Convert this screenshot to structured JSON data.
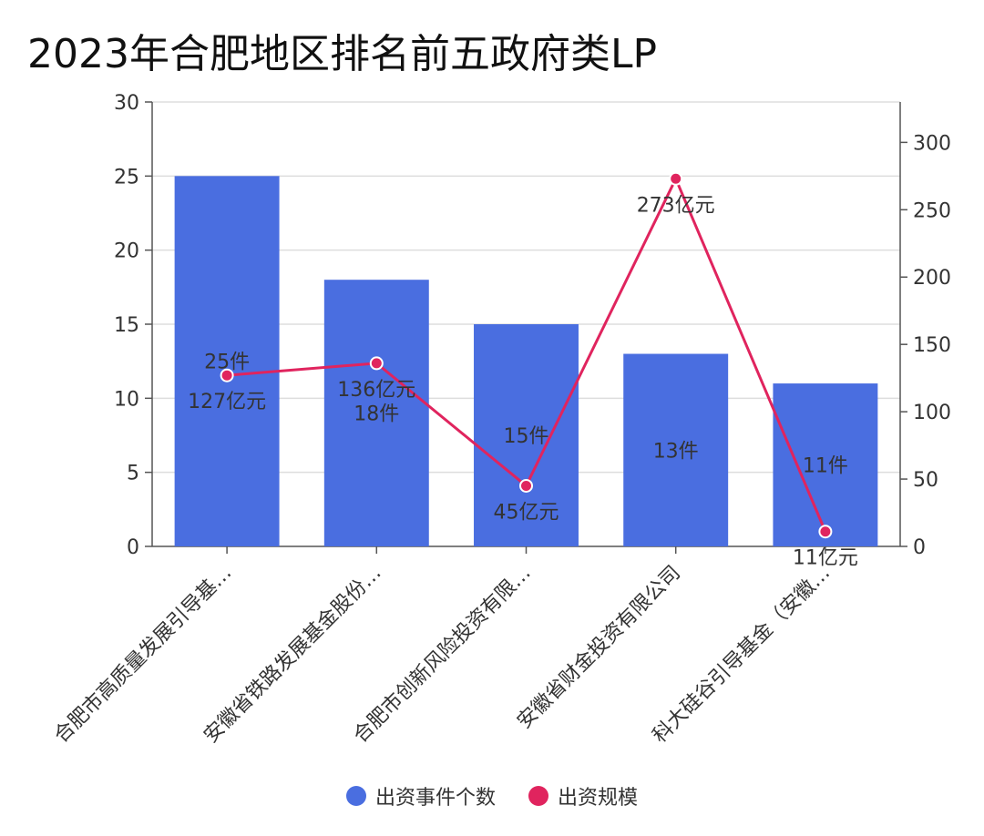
{
  "chart_data": {
    "type": "bar",
    "title": "2023年合肥地区排名前五政府类LP",
    "categories": [
      "合肥市高质量发展引导基…",
      "安徽省铁路发展基金股份…",
      "合肥市创新风险投资有限…",
      "安徽省财金投资有限公司",
      "科大硅谷引导基金（安徽…"
    ],
    "series": [
      {
        "name": "出资事件个数",
        "type": "bar",
        "axis": "left",
        "values": [
          25,
          18,
          15,
          13,
          11
        ],
        "labels": [
          "25件",
          "18件",
          "15件",
          "13件",
          "11件"
        ],
        "color": "#4a6ee0"
      },
      {
        "name": "出资规模",
        "type": "line",
        "axis": "right",
        "values": [
          127,
          136,
          45,
          273,
          11
        ],
        "labels": [
          "127亿元",
          "136亿元",
          "45亿元",
          "273亿元",
          "11亿元"
        ],
        "color": "#e0245e"
      }
    ],
    "left_axis": {
      "ylim": [
        0,
        30
      ],
      "ticks": [
        "0",
        "5",
        "10",
        "15",
        "20",
        "25",
        "30"
      ]
    },
    "right_axis": {
      "ylim": [
        0,
        330
      ],
      "ticks": [
        "0",
        "50",
        "100",
        "150",
        "200",
        "250",
        "300"
      ]
    },
    "grid": true,
    "legend_position": "bottom-center"
  }
}
